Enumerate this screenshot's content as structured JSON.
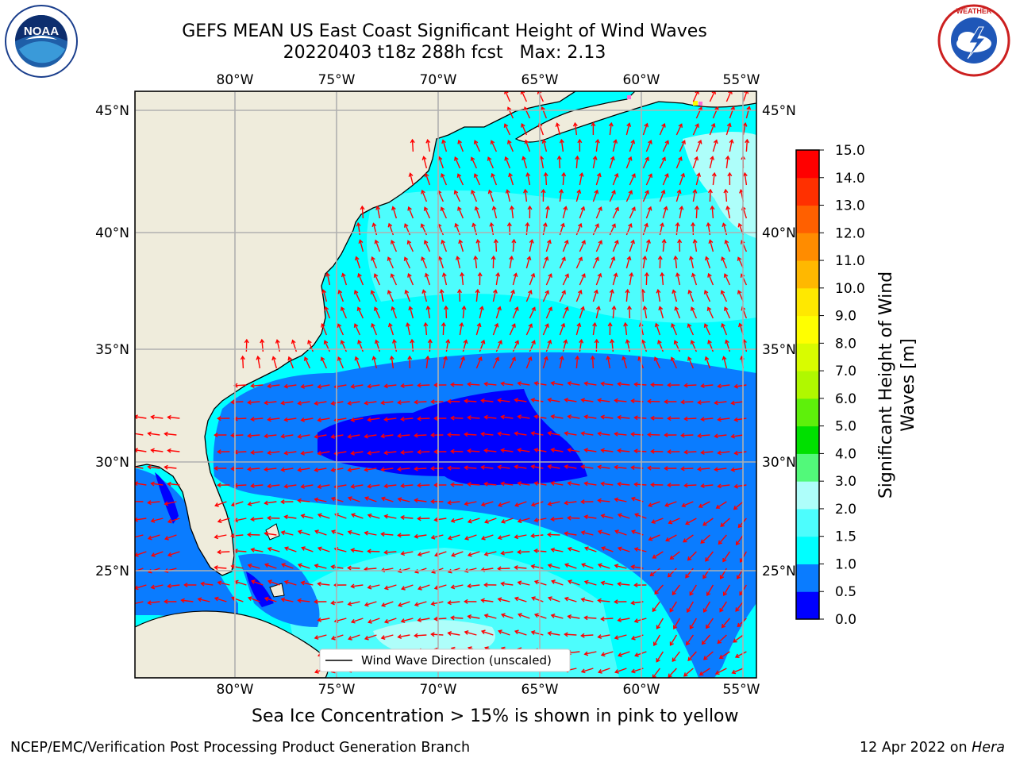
{
  "header": {
    "title_line1": "GEFS MEAN US East Coast Significant Height of Wind Waves",
    "title_line2": "20220403 t18z 288h fcst   Max: 2.13"
  },
  "logos": {
    "left": "NOAA",
    "left_ring_text": "NATIONAL OCEANIC AND ATMOSPHERIC ADMINISTRATION · U.S. DEPARTMENT OF COMMERCE",
    "right_ring_text": "NATIONAL WEATHER SERVICE"
  },
  "map": {
    "lon_labels": [
      "80°W",
      "75°W",
      "70°W",
      "65°W",
      "60°W",
      "55°W"
    ],
    "lat_labels": [
      "45°N",
      "40°N",
      "35°N",
      "30°N",
      "25°N"
    ],
    "legend_label": "Wind Wave Direction (unscaled)",
    "colors": {
      "land": "#efecdc",
      "band_0_0p5": "#0000ff",
      "band_0p5_1": "#0a7cff",
      "band_1_1p5": "#00ffff",
      "band_1p5_2": "#4dfdfd",
      "band_2_3": "#aefefa",
      "arrow": "#ff0000",
      "grid": "#b0b0b0"
    }
  },
  "colorbar": {
    "label_line1": "Significant Height of Wind",
    "label_line2": "Waves [m]",
    "ticks": [
      "0.0",
      "0.5",
      "1.0",
      "1.5",
      "2.0",
      "3.0",
      "4.0",
      "5.0",
      "6.0",
      "7.0",
      "8.0",
      "9.0",
      "10.0",
      "11.0",
      "12.0",
      "13.0",
      "14.0",
      "15.0"
    ],
    "colors": [
      "#0000ff",
      "#0a7cff",
      "#00ffff",
      "#4dfdfd",
      "#aefefa",
      "#52f97a",
      "#00e000",
      "#5ef00b",
      "#b0f800",
      "#d8fc00",
      "#ffff00",
      "#ffe800",
      "#ffb800",
      "#ff8c00",
      "#ff6000",
      "#ff3000",
      "#ff0000"
    ]
  },
  "caption": "Sea Ice Concentration > 15% is shown in pink to yellow",
  "footer": {
    "left": "NCEP/EMC/Verification Post Processing Product Generation Branch",
    "date": "12 Apr 2022 on ",
    "host": "Hera"
  }
}
